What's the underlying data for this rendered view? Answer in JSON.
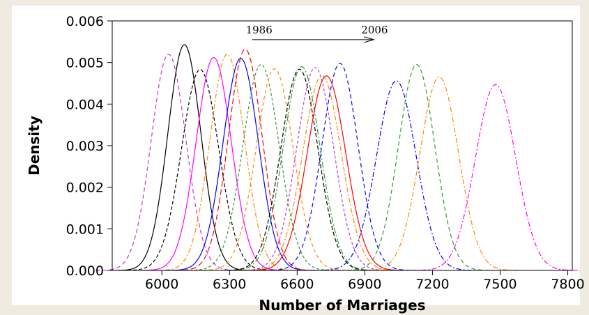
{
  "chart_data": {
    "type": "line",
    "title": "",
    "xlabel": "Number of Marriages",
    "ylabel": "Density",
    "xlim": [
      5780,
      7820
    ],
    "ylim": [
      0,
      0.006
    ],
    "x_ticks": [
      6000,
      6300,
      6600,
      6900,
      7200,
      7500,
      7800
    ],
    "y_ticks": [
      0.0,
      0.001,
      0.002,
      0.003,
      0.004,
      0.005,
      0.006
    ],
    "y_tick_labels": [
      "0.000",
      "0.001",
      "0.002",
      "0.003",
      "0.004",
      "0.005",
      "0.006"
    ],
    "grid": false,
    "legend": "none",
    "annotation": {
      "start_label": "1986",
      "end_label": "2006",
      "arrow_from_x": 6400,
      "arrow_to_x": 6940,
      "arrow_y": 0.00555
    },
    "series": [
      {
        "mean": 6030,
        "peak": 0.0052,
        "color": "#cc33cc",
        "dash": "6,4"
      },
      {
        "mean": 6100,
        "peak": 0.00543,
        "color": "#000000",
        "dash": ""
      },
      {
        "mean": 6170,
        "peak": 0.00483,
        "color": "#000000",
        "dash": "5,3"
      },
      {
        "mean": 6230,
        "peak": 0.00512,
        "color": "#ff00ff",
        "dash": ""
      },
      {
        "mean": 6290,
        "peak": 0.0052,
        "color": "#ff8800",
        "dash": "7,3,2,3"
      },
      {
        "mean": 6350,
        "peak": 0.0051,
        "color": "#0000ff",
        "dash": ""
      },
      {
        "mean": 6370,
        "peak": 0.00532,
        "color": "#ff0000",
        "dash": "8,4"
      },
      {
        "mean": 6440,
        "peak": 0.00495,
        "color": "#339933",
        "dash": "4,3"
      },
      {
        "mean": 6500,
        "peak": 0.00485,
        "color": "#ff8800",
        "dash": "5,4"
      },
      {
        "mean": 6620,
        "peak": 0.0049,
        "color": "#339933",
        "dash": "8,3,2,3"
      },
      {
        "mean": 6610,
        "peak": 0.00484,
        "color": "#000000",
        "dash": "6,3"
      },
      {
        "mean": 6680,
        "peak": 0.00488,
        "color": "#cc33cc",
        "dash": "4,3"
      },
      {
        "mean": 6710,
        "peak": 0.00468,
        "color": "#ff8800",
        "dash": "7,3,2,3"
      },
      {
        "mean": 6730,
        "peak": 0.00468,
        "color": "#ff0000",
        "dash": ""
      },
      {
        "mean": 6790,
        "peak": 0.00498,
        "color": "#0000ff",
        "dash": "6,4"
      },
      {
        "mean": 7040,
        "peak": 0.00456,
        "color": "#0000ff",
        "dash": "7,3,2,3"
      },
      {
        "mean": 7130,
        "peak": 0.00495,
        "color": "#339933",
        "dash": "6,4"
      },
      {
        "mean": 7230,
        "peak": 0.00465,
        "color": "#ff8800",
        "dash": "7,3,2,3"
      },
      {
        "mean": 7480,
        "peak": 0.00447,
        "color": "#ff00ff",
        "dash": "7,3,2,3"
      }
    ]
  }
}
